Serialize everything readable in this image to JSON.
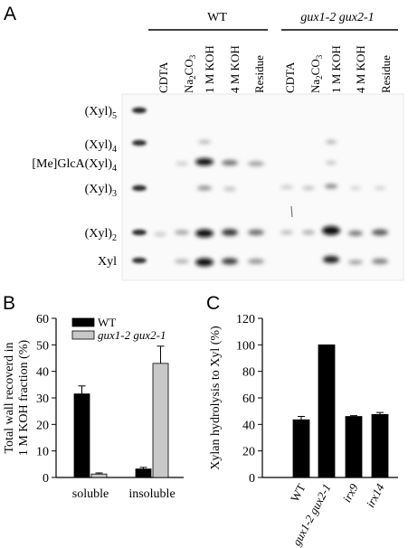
{
  "panels": {
    "a": {
      "letter": "A"
    },
    "b": {
      "letter": "B"
    },
    "c": {
      "letter": "C"
    }
  },
  "gel": {
    "group_labels": [
      "WT",
      "gux1-2 gux2-1"
    ],
    "lane_labels": [
      "CDTA",
      "Na2CO3",
      "1 M KOH",
      "4 M KOH",
      "Residue",
      "CDTA",
      "Na2CO3",
      "1 M KOH",
      "4 M KOH",
      "Residue"
    ],
    "band_labels": [
      "(Xyl)5",
      "(Xyl)4",
      "[Me]GlcA(Xyl)4",
      "(Xyl)3",
      "(Xyl)2",
      "Xyl"
    ]
  },
  "chart_data": [
    {
      "type": "bar",
      "panel": "B",
      "categories": [
        "soluble",
        "insoluble"
      ],
      "series": [
        {
          "name": "WT",
          "values": [
            31.5,
            3.2
          ],
          "errors": [
            3.0,
            0.6
          ],
          "color": "#000000"
        },
        {
          "name": "gux1-2 gux2-1",
          "values": [
            1.3,
            43.0
          ],
          "errors": [
            0.4,
            6.5
          ],
          "color": "#c8c8c8"
        }
      ],
      "ylabel": "Total wall recoverd in 1 M KOH fraction (%)",
      "ylabel_lines": [
        "Total wall recoverd in",
        "1 M KOH fraction (%)"
      ],
      "ylim": [
        0,
        60
      ],
      "yticks": [
        0,
        10,
        20,
        30,
        40,
        50,
        60
      ],
      "legend": "top-left"
    },
    {
      "type": "bar",
      "panel": "C",
      "categories": [
        "WT",
        "gux1-2 gux2-1",
        "irx9",
        "irx14"
      ],
      "values": [
        43.5,
        100,
        46,
        47.5
      ],
      "errors": [
        2.5,
        0,
        0.6,
        1.5
      ],
      "ylabel": "Xylan hydrolysis to Xyl (%)",
      "ylim": [
        0,
        120
      ],
      "yticks": [
        0,
        20,
        40,
        60,
        80,
        100,
        120
      ]
    }
  ]
}
